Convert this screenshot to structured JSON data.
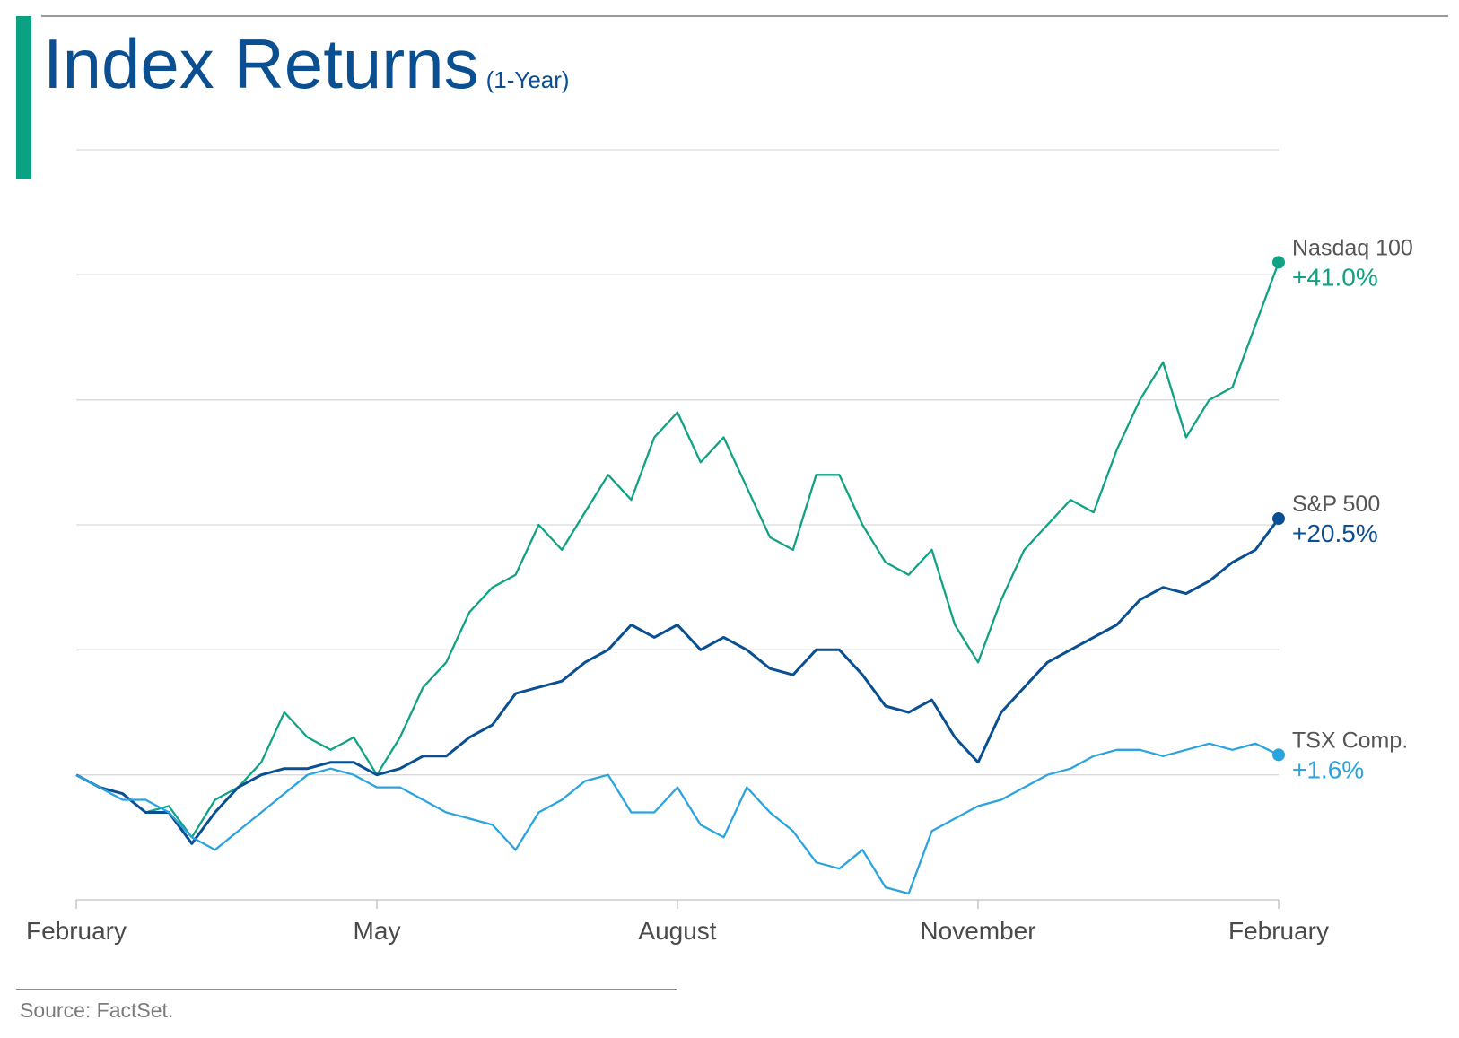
{
  "header": {
    "title": "Index Returns",
    "subtitle": "(1-Year)"
  },
  "footer": {
    "source": "Source: FactSet."
  },
  "colors": {
    "accent": "#0aa283",
    "nasdaq": "#10a283",
    "sp500": "#0a4f91",
    "tsx": "#2aa3df"
  },
  "chart_data": {
    "type": "line",
    "title": "Index Returns",
    "subtitle": "(1-Year)",
    "x_tick_labels": [
      "February",
      "May",
      "August",
      "November",
      "February"
    ],
    "x_range_weeks": [
      0,
      52
    ],
    "ylim": [
      -10,
      50
    ],
    "grid": "horizontal",
    "series": [
      {
        "name": "Nasdaq 100",
        "end_label": "+41.0%",
        "color": "#10a283",
        "x": [
          0,
          1,
          2,
          3,
          4,
          5,
          6,
          7,
          8,
          9,
          10,
          11,
          12,
          13,
          14,
          15,
          16,
          17,
          18,
          19,
          20,
          21,
          22,
          23,
          24,
          25,
          26,
          27,
          28,
          29,
          30,
          31,
          32,
          33,
          34,
          35,
          36,
          37,
          38,
          39,
          40,
          41,
          42,
          43,
          44,
          45,
          46,
          47,
          48,
          49,
          50,
          51,
          52
        ],
        "values": [
          0,
          -1,
          -1.5,
          -3,
          -2.5,
          -5,
          -2,
          -1,
          1,
          5,
          3,
          2,
          3,
          0,
          3,
          7,
          9,
          13,
          15,
          16,
          20,
          18,
          21,
          24,
          22,
          27,
          29,
          25,
          27,
          23,
          19,
          18,
          24,
          24,
          20,
          17,
          16,
          18,
          12,
          9,
          14,
          18,
          20,
          22,
          21,
          26,
          30,
          33,
          27,
          30,
          31,
          36,
          41
        ]
      },
      {
        "name": "S&P 500",
        "end_label": "+20.5%",
        "color": "#0a4f91",
        "x": [
          0,
          1,
          2,
          3,
          4,
          5,
          6,
          7,
          8,
          9,
          10,
          11,
          12,
          13,
          14,
          15,
          16,
          17,
          18,
          19,
          20,
          21,
          22,
          23,
          24,
          25,
          26,
          27,
          28,
          29,
          30,
          31,
          32,
          33,
          34,
          35,
          36,
          37,
          38,
          39,
          40,
          41,
          42,
          43,
          44,
          45,
          46,
          47,
          48,
          49,
          50,
          51,
          52
        ],
        "values": [
          0,
          -1,
          -1.5,
          -3,
          -3,
          -5.5,
          -3,
          -1,
          0,
          0.5,
          0.5,
          1,
          1,
          0,
          0.5,
          1.5,
          1.5,
          3,
          4,
          6.5,
          7,
          7.5,
          9,
          10,
          12,
          11,
          12,
          10,
          11,
          10,
          8.5,
          8,
          10,
          10,
          8,
          5.5,
          5,
          6,
          3,
          1,
          5,
          7,
          9,
          10,
          11,
          12,
          14,
          15,
          14.5,
          15.5,
          17,
          18,
          20.5
        ]
      },
      {
        "name": "TSX Comp.",
        "end_label": "+1.6%",
        "color": "#2aa3df",
        "x": [
          0,
          1,
          2,
          3,
          4,
          5,
          6,
          7,
          8,
          9,
          10,
          11,
          12,
          13,
          14,
          15,
          16,
          17,
          18,
          19,
          20,
          21,
          22,
          23,
          24,
          25,
          26,
          27,
          28,
          29,
          30,
          31,
          32,
          33,
          34,
          35,
          36,
          37,
          38,
          39,
          40,
          41,
          42,
          43,
          44,
          45,
          46,
          47,
          48,
          49,
          50,
          51,
          52
        ],
        "values": [
          0,
          -1,
          -2,
          -2,
          -3,
          -5,
          -6,
          -4.5,
          -3,
          -1.5,
          0,
          0.5,
          0,
          -1,
          -1,
          -2,
          -3,
          -3.5,
          -4,
          -6,
          -3,
          -2,
          -0.5,
          0,
          -3,
          -3,
          -1,
          -4,
          -5,
          -1,
          -3,
          -4.5,
          -7,
          -7.5,
          -6,
          -9,
          -9.5,
          -4.5,
          -3.5,
          -2.5,
          -2,
          -1,
          0,
          0.5,
          1.5,
          2,
          2,
          1.5,
          2,
          2.5,
          2,
          2.5,
          1.6
        ]
      }
    ]
  }
}
